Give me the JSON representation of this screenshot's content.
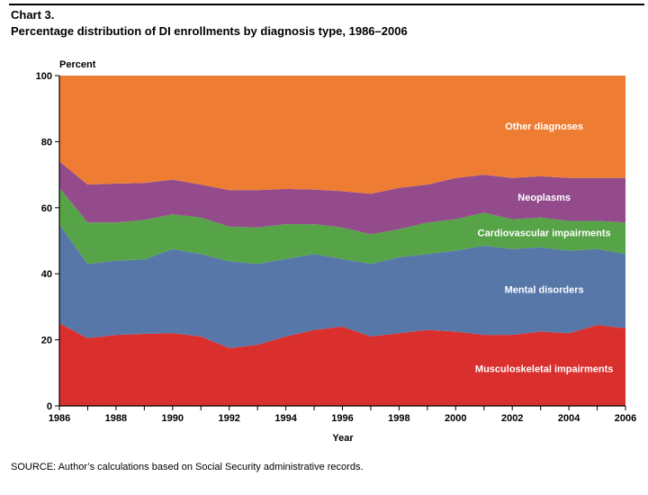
{
  "header": {
    "chart_label": "Chart 3.",
    "title": "Percentage distribution of DI enrollments by diagnosis type, 1986–2006"
  },
  "footer": {
    "source": "SOURCE: Author’s calculations based on Social Security administrative records."
  },
  "chart_data": {
    "type": "area",
    "stacked": true,
    "title": "Percentage distribution of DI enrollments by diagnosis type, 1986–2006",
    "xlabel": "Year",
    "ylabel": "Percent",
    "xlim": [
      1986,
      2006
    ],
    "ylim": [
      0,
      100
    ],
    "xticks": [
      1986,
      1988,
      1990,
      1992,
      1994,
      1996,
      1998,
      2000,
      2002,
      2004,
      2006
    ],
    "yticks": [
      0,
      20,
      40,
      60,
      80,
      100
    ],
    "grid": false,
    "legend": "inline labels on areas",
    "x": [
      1986,
      1987,
      1988,
      1989,
      1990,
      1991,
      1992,
      1993,
      1994,
      1995,
      1996,
      1997,
      1998,
      1999,
      2000,
      2001,
      2002,
      2003,
      2004,
      2005,
      2006
    ],
    "series": [
      {
        "name": "Musculoskeletal impairments",
        "color": "#d9302d",
        "values": [
          25.0,
          20.5,
          21.5,
          21.8,
          22.0,
          21.0,
          17.5,
          18.5,
          21.0,
          23.0,
          24.0,
          21.0,
          22.0,
          23.0,
          22.5,
          21.5,
          21.5,
          22.5,
          22.0,
          24.5,
          23.5
        ]
      },
      {
        "name": "Mental disorders",
        "color": "#5777a9",
        "values": [
          30.0,
          22.5,
          22.5,
          22.5,
          25.5,
          25.0,
          26.3,
          24.5,
          23.5,
          23.0,
          20.5,
          22.0,
          23.0,
          23.0,
          24.5,
          27.0,
          26.0,
          25.5,
          25.0,
          23.0,
          22.5
        ]
      },
      {
        "name": "Cardiovascular impairments",
        "color": "#56a447",
        "values": [
          11.0,
          12.5,
          11.5,
          12.0,
          10.5,
          11.0,
          10.5,
          11.0,
          10.5,
          9.0,
          9.5,
          9.0,
          8.5,
          9.5,
          9.5,
          10.0,
          9.0,
          9.0,
          9.0,
          8.5,
          9.5
        ]
      },
      {
        "name": "Neoplasms",
        "color": "#934b8c",
        "values": [
          8.0,
          11.5,
          11.8,
          11.2,
          10.5,
          10.0,
          11.0,
          11.3,
          10.7,
          10.5,
          11.0,
          12.2,
          12.5,
          11.5,
          12.5,
          11.5,
          12.5,
          12.5,
          13.0,
          13.0,
          13.5
        ]
      },
      {
        "name": "Other diagnoses",
        "color": "#ee7d33",
        "values": [
          26.0,
          33.0,
          32.7,
          32.5,
          31.5,
          33.0,
          34.7,
          34.7,
          34.3,
          34.5,
          35.0,
          35.8,
          34.0,
          33.0,
          31.0,
          30.0,
          31.0,
          30.5,
          31.0,
          31.0,
          31.0
        ]
      }
    ]
  }
}
